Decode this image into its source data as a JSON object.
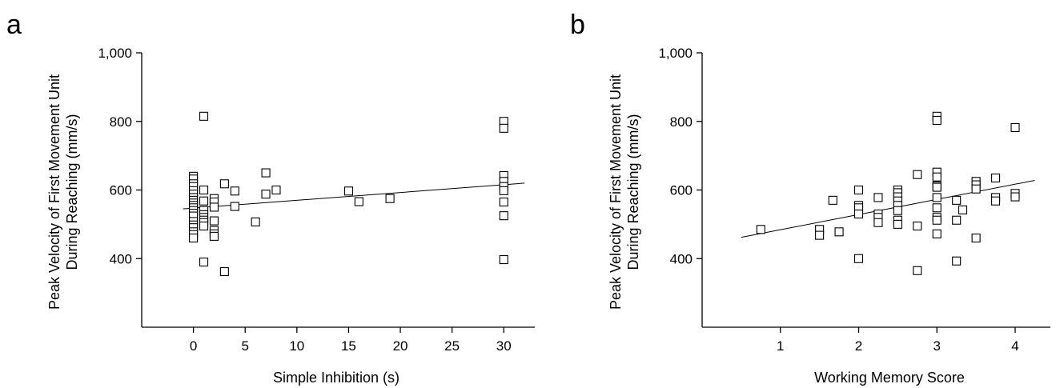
{
  "chart_data": [
    {
      "panel_label": "a",
      "type": "scatter",
      "xlabel": "Simple Inhibition (s)",
      "ylabel": [
        "Peak Velocity of First Movement Unit",
        "During Reaching (mm/s)"
      ],
      "xlim": [
        -5,
        33
      ],
      "ylim": [
        200,
        1000
      ],
      "xticks": [
        0,
        5,
        10,
        15,
        20,
        25,
        30
      ],
      "xtick_labels": [
        "0",
        "5",
        "10",
        "15",
        "20",
        "25",
        "30"
      ],
      "yticks": [
        400,
        600,
        800,
        1000
      ],
      "ytick_labels": [
        "400",
        "600",
        "800",
        "1,000"
      ],
      "grid": false,
      "fit_line": {
        "x": [
          -1,
          32
        ],
        "y": [
          545,
          620
        ]
      },
      "points": [
        [
          0,
          640
        ],
        [
          0,
          632
        ],
        [
          0,
          618
        ],
        [
          0,
          610
        ],
        [
          0,
          598
        ],
        [
          0,
          588
        ],
        [
          0,
          578
        ],
        [
          0,
          570
        ],
        [
          0,
          562
        ],
        [
          0,
          555
        ],
        [
          0,
          548
        ],
        [
          0,
          540
        ],
        [
          0,
          532
        ],
        [
          0,
          524
        ],
        [
          0,
          508
        ],
        [
          0,
          498
        ],
        [
          0,
          490
        ],
        [
          0,
          478
        ],
        [
          0,
          470
        ],
        [
          0,
          460
        ],
        [
          1,
          815
        ],
        [
          1,
          600
        ],
        [
          1,
          568
        ],
        [
          1,
          540
        ],
        [
          1,
          528
        ],
        [
          1,
          520
        ],
        [
          1,
          512
        ],
        [
          1,
          505
        ],
        [
          1,
          495
        ],
        [
          1,
          390
        ],
        [
          2,
          575
        ],
        [
          2,
          565
        ],
        [
          2,
          550
        ],
        [
          2,
          510
        ],
        [
          2,
          482
        ],
        [
          2,
          472
        ],
        [
          2,
          465
        ],
        [
          3,
          618
        ],
        [
          3,
          362
        ],
        [
          4,
          597
        ],
        [
          4,
          552
        ],
        [
          6,
          507
        ],
        [
          7,
          650
        ],
        [
          7,
          588
        ],
        [
          8,
          600
        ],
        [
          15,
          597
        ],
        [
          16,
          566
        ],
        [
          19,
          575
        ],
        [
          30,
          800
        ],
        [
          30,
          780
        ],
        [
          30,
          642
        ],
        [
          30,
          625
        ],
        [
          30,
          610
        ],
        [
          30,
          598
        ],
        [
          30,
          565
        ],
        [
          30,
          525
        ],
        [
          30,
          397
        ]
      ]
    },
    {
      "panel_label": "b",
      "type": "scatter",
      "xlabel": "Working Memory Score",
      "ylabel": [
        "Peak Velocity of First Movement Unit",
        "During Reaching (mm/s)"
      ],
      "xlim": [
        0.0,
        4.45
      ],
      "ylim": [
        200,
        1000
      ],
      "xticks": [
        1,
        2,
        3,
        4
      ],
      "xtick_labels": [
        "1",
        "2",
        "3",
        "4"
      ],
      "yticks": [
        400,
        600,
        800,
        1000
      ],
      "ytick_labels": [
        "400",
        "600",
        "800",
        "1,000"
      ],
      "grid": false,
      "fit_line": {
        "x": [
          0.5,
          4.25
        ],
        "y": [
          462,
          628
        ]
      },
      "points": [
        [
          0.75,
          485
        ],
        [
          1.5,
          485
        ],
        [
          1.5,
          468
        ],
        [
          1.75,
          478
        ],
        [
          1.67,
          570
        ],
        [
          2.0,
          600
        ],
        [
          2.0,
          555
        ],
        [
          2.0,
          548
        ],
        [
          2.0,
          530
        ],
        [
          2.0,
          400
        ],
        [
          2.25,
          578
        ],
        [
          2.25,
          530
        ],
        [
          2.25,
          520
        ],
        [
          2.25,
          505
        ],
        [
          2.5,
          600
        ],
        [
          2.5,
          592
        ],
        [
          2.5,
          580
        ],
        [
          2.5,
          568
        ],
        [
          2.5,
          555
        ],
        [
          2.5,
          540
        ],
        [
          2.5,
          512
        ],
        [
          2.5,
          500
        ],
        [
          2.75,
          645
        ],
        [
          2.75,
          495
        ],
        [
          2.75,
          365
        ],
        [
          3.0,
          815
        ],
        [
          3.0,
          803
        ],
        [
          3.0,
          652
        ],
        [
          3.0,
          638
        ],
        [
          3.0,
          612
        ],
        [
          3.0,
          608
        ],
        [
          3.0,
          578
        ],
        [
          3.0,
          548
        ],
        [
          3.0,
          520
        ],
        [
          3.0,
          512
        ],
        [
          3.0,
          472
        ],
        [
          3.25,
          570
        ],
        [
          3.25,
          512
        ],
        [
          3.25,
          393
        ],
        [
          3.33,
          542
        ],
        [
          3.5,
          625
        ],
        [
          3.5,
          615
        ],
        [
          3.5,
          603
        ],
        [
          3.5,
          460
        ],
        [
          3.75,
          635
        ],
        [
          3.75,
          578
        ],
        [
          3.75,
          568
        ],
        [
          4.0,
          782
        ],
        [
          4.0,
          590
        ],
        [
          4.0,
          580
        ]
      ]
    }
  ]
}
